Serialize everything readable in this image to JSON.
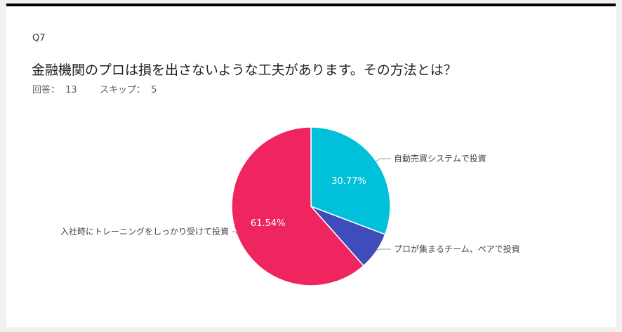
{
  "question": {
    "number": "Q7",
    "title": "金融機関のプロは損を出さないような工夫があります。その方法とは？",
    "answers_label": "回答：",
    "answers_count": "13",
    "skips_label": "スキップ：",
    "skips_count": "5"
  },
  "colors": {
    "card_border": "#000000",
    "series": [
      "#00c0da",
      "#3e4db9",
      "#ef2560"
    ]
  },
  "chart_data": {
    "type": "pie",
    "categories": [
      "自動売買システムで投資",
      "プロが集まるチーム、ペアで投資",
      "入社時にトレーニングをしっかり受けて投資"
    ],
    "values": [
      30.77,
      7.69,
      61.54
    ],
    "data_labels": [
      "30.77%",
      "",
      "61.54%"
    ],
    "start_angle_deg": 0,
    "direction": "clockwise"
  }
}
